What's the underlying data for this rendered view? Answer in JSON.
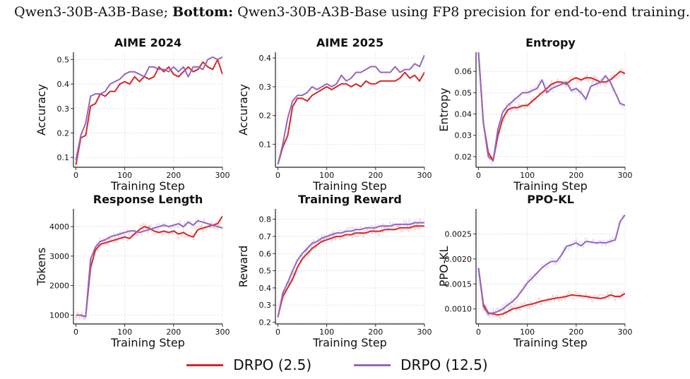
{
  "caption": {
    "line_prefix": "Qwen3-30B-A3B-Base;",
    "bold_word": "Bottom:",
    "line_rest": "Qwen3-30B-A3B-Base using FP8 precision for end-to-end training."
  },
  "legend": [
    {
      "name": "DRPO (2.5)",
      "color": "#d62728"
    },
    {
      "name": "DRPO (12.5)",
      "color": "#9467bd"
    }
  ],
  "chart_data": [
    {
      "type": "line",
      "title": "AIME 2024",
      "xlabel": "Training Step",
      "ylabel": "Accuracy",
      "xlim": [
        -5,
        300
      ],
      "ylim": [
        0.06,
        0.53
      ],
      "xticks": [
        "0",
        "100",
        "200",
        "300"
      ],
      "yticks": [
        "0.1",
        "0.2",
        "0.3",
        "0.4",
        "0.5"
      ],
      "grid": true,
      "raw_traces": false,
      "x": [
        0,
        10,
        20,
        30,
        40,
        50,
        60,
        70,
        80,
        90,
        100,
        110,
        120,
        130,
        140,
        150,
        160,
        170,
        180,
        190,
        200,
        210,
        220,
        230,
        240,
        250,
        260,
        270,
        280,
        290,
        300
      ],
      "series": [
        {
          "name": "DRPO (2.5)",
          "color": "#d62728",
          "values": [
            0.07,
            0.18,
            0.19,
            0.31,
            0.32,
            0.36,
            0.35,
            0.37,
            0.37,
            0.4,
            0.41,
            0.4,
            0.43,
            0.41,
            0.43,
            0.42,
            0.43,
            0.47,
            0.45,
            0.47,
            0.44,
            0.43,
            0.45,
            0.47,
            0.45,
            0.46,
            0.49,
            0.47,
            0.46,
            0.5,
            0.44
          ]
        },
        {
          "name": "DRPO (12.5)",
          "color": "#9467bd",
          "values": [
            0.09,
            0.19,
            0.24,
            0.35,
            0.36,
            0.36,
            0.37,
            0.4,
            0.41,
            0.42,
            0.44,
            0.45,
            0.45,
            0.44,
            0.43,
            0.47,
            0.47,
            0.46,
            0.46,
            0.45,
            0.47,
            0.45,
            0.47,
            0.43,
            0.47,
            0.47,
            0.46,
            0.5,
            0.51,
            0.5,
            0.51
          ]
        }
      ]
    },
    {
      "type": "line",
      "title": "AIME 2025",
      "xlabel": "Training Step",
      "ylabel": "Accuracy",
      "xlim": [
        -5,
        300
      ],
      "ylim": [
        0.02,
        0.42
      ],
      "xticks": [
        "0",
        "100",
        "200",
        "300"
      ],
      "yticks": [
        "0.1",
        "0.2",
        "0.3",
        "0.4"
      ],
      "grid": true,
      "raw_traces": false,
      "x": [
        0,
        10,
        20,
        30,
        40,
        50,
        60,
        70,
        80,
        90,
        100,
        110,
        120,
        130,
        140,
        150,
        160,
        170,
        180,
        190,
        200,
        210,
        220,
        230,
        240,
        250,
        260,
        270,
        280,
        290,
        300
      ],
      "series": [
        {
          "name": "DRPO (2.5)",
          "color": "#d62728",
          "values": [
            0.03,
            0.09,
            0.13,
            0.23,
            0.26,
            0.26,
            0.25,
            0.27,
            0.28,
            0.29,
            0.3,
            0.29,
            0.3,
            0.31,
            0.31,
            0.3,
            0.31,
            0.3,
            0.32,
            0.31,
            0.31,
            0.32,
            0.32,
            0.32,
            0.32,
            0.33,
            0.35,
            0.33,
            0.34,
            0.32,
            0.35
          ]
        },
        {
          "name": "DRPO (12.5)",
          "color": "#9467bd",
          "values": [
            0.03,
            0.1,
            0.19,
            0.25,
            0.27,
            0.27,
            0.28,
            0.3,
            0.29,
            0.3,
            0.31,
            0.3,
            0.31,
            0.34,
            0.32,
            0.33,
            0.35,
            0.35,
            0.36,
            0.37,
            0.37,
            0.35,
            0.35,
            0.35,
            0.37,
            0.35,
            0.36,
            0.36,
            0.38,
            0.37,
            0.41
          ]
        }
      ]
    },
    {
      "type": "line",
      "title": "Entropy",
      "xlabel": "Training Step",
      "ylabel": "Entropy",
      "xlim": [
        -5,
        300
      ],
      "ylim": [
        0.015,
        0.069
      ],
      "xticks": [
        "0",
        "100",
        "200",
        "300"
      ],
      "yticks": [
        "0.02",
        "0.03",
        "0.04",
        "0.05",
        "0.06"
      ],
      "grid": true,
      "raw_traces": true,
      "x": [
        0,
        10,
        20,
        30,
        40,
        50,
        60,
        70,
        80,
        90,
        100,
        110,
        120,
        130,
        140,
        150,
        160,
        170,
        180,
        190,
        200,
        210,
        220,
        230,
        240,
        250,
        260,
        270,
        280,
        290,
        300
      ],
      "series": [
        {
          "name": "DRPO (2.5)",
          "color": "#d62728",
          "values": [
            0.069,
            0.036,
            0.022,
            0.018,
            0.03,
            0.038,
            0.042,
            0.043,
            0.043,
            0.044,
            0.044,
            0.046,
            0.048,
            0.05,
            0.052,
            0.054,
            0.055,
            0.055,
            0.054,
            0.056,
            0.057,
            0.056,
            0.057,
            0.057,
            0.056,
            0.055,
            0.055,
            0.056,
            0.058,
            0.06,
            0.059
          ]
        },
        {
          "name": "DRPO (12.5)",
          "color": "#9467bd",
          "values": [
            0.069,
            0.036,
            0.02,
            0.018,
            0.033,
            0.041,
            0.044,
            0.046,
            0.048,
            0.05,
            0.05,
            0.051,
            0.052,
            0.056,
            0.05,
            0.052,
            0.053,
            0.054,
            0.055,
            0.051,
            0.052,
            0.05,
            0.047,
            0.053,
            0.054,
            0.055,
            0.058,
            0.055,
            0.05,
            0.045,
            0.044
          ]
        }
      ]
    },
    {
      "type": "line",
      "title": "Response Length",
      "xlabel": "Training Step",
      "ylabel": "Tokens",
      "xlim": [
        -5,
        300
      ],
      "ylim": [
        700,
        4600
      ],
      "xticks": [
        "0",
        "100",
        "200",
        "300"
      ],
      "yticks": [
        "1000",
        "2000",
        "3000",
        "4000"
      ],
      "grid": true,
      "raw_traces": true,
      "x": [
        0,
        10,
        20,
        30,
        40,
        50,
        60,
        70,
        80,
        90,
        100,
        110,
        120,
        130,
        140,
        150,
        160,
        170,
        180,
        190,
        200,
        210,
        220,
        230,
        240,
        250,
        260,
        270,
        280,
        290,
        300
      ],
      "series": [
        {
          "name": "DRPO (2.5)",
          "color": "#d62728",
          "values": [
            1000,
            1000,
            950,
            2600,
            3200,
            3400,
            3450,
            3500,
            3550,
            3600,
            3650,
            3600,
            3750,
            3900,
            4000,
            3950,
            3850,
            3800,
            3850,
            3800,
            3850,
            3750,
            3800,
            3700,
            3650,
            3900,
            3950,
            4000,
            4050,
            4100,
            4350
          ]
        },
        {
          "name": "DRPO (12.5)",
          "color": "#9467bd",
          "values": [
            1000,
            1000,
            950,
            2900,
            3300,
            3500,
            3550,
            3650,
            3700,
            3750,
            3800,
            3850,
            3850,
            3800,
            3850,
            3900,
            3950,
            4000,
            4050,
            4000,
            4050,
            4100,
            4000,
            4150,
            4050,
            4200,
            4150,
            4100,
            4050,
            4000,
            3950
          ]
        }
      ]
    },
    {
      "type": "line",
      "title": "Training Reward",
      "xlabel": "Training Step",
      "ylabel": "Reward",
      "xlim": [
        -5,
        300
      ],
      "ylim": [
        0.19,
        0.86
      ],
      "xticks": [
        "0",
        "100",
        "200",
        "300"
      ],
      "yticks": [
        "0.2",
        "0.3",
        "0.4",
        "0.5",
        "0.6",
        "0.7",
        "0.8"
      ],
      "grid": true,
      "raw_traces": true,
      "x": [
        0,
        10,
        20,
        30,
        40,
        50,
        60,
        70,
        80,
        90,
        100,
        110,
        120,
        130,
        140,
        150,
        160,
        170,
        180,
        190,
        200,
        210,
        220,
        230,
        240,
        250,
        260,
        270,
        280,
        290,
        300
      ],
      "series": [
        {
          "name": "DRPO (2.5)",
          "color": "#d62728",
          "values": [
            0.23,
            0.35,
            0.4,
            0.45,
            0.52,
            0.57,
            0.6,
            0.63,
            0.65,
            0.67,
            0.68,
            0.69,
            0.7,
            0.7,
            0.71,
            0.71,
            0.72,
            0.72,
            0.72,
            0.73,
            0.73,
            0.73,
            0.74,
            0.74,
            0.74,
            0.75,
            0.75,
            0.75,
            0.76,
            0.76,
            0.76
          ]
        },
        {
          "name": "DRPO (12.5)",
          "color": "#9467bd",
          "values": [
            0.23,
            0.37,
            0.43,
            0.5,
            0.56,
            0.6,
            0.63,
            0.66,
            0.67,
            0.69,
            0.7,
            0.71,
            0.72,
            0.72,
            0.73,
            0.73,
            0.74,
            0.74,
            0.75,
            0.75,
            0.75,
            0.76,
            0.76,
            0.76,
            0.77,
            0.77,
            0.77,
            0.77,
            0.78,
            0.78,
            0.78
          ]
        }
      ]
    },
    {
      "type": "line",
      "title": "PPO-KL",
      "xlabel": "Training Step",
      "ylabel": "PPO-KL",
      "xlim": [
        -5,
        300
      ],
      "ylim": [
        0.0007,
        0.003
      ],
      "xticks": [
        "0",
        "100",
        "200",
        "300"
      ],
      "yticks": [
        "0.0010",
        "0.0015",
        "0.0020",
        "0.0025"
      ],
      "grid": true,
      "raw_traces": true,
      "x": [
        0,
        10,
        20,
        30,
        40,
        50,
        60,
        70,
        80,
        90,
        100,
        110,
        120,
        130,
        140,
        150,
        160,
        170,
        180,
        190,
        200,
        210,
        220,
        230,
        240,
        250,
        260,
        270,
        280,
        290,
        300
      ],
      "series": [
        {
          "name": "DRPO (2.5)",
          "color": "#d62728",
          "values": [
            0.00182,
            0.0011,
            0.00092,
            0.0009,
            0.00088,
            0.0009,
            0.00095,
            0.001,
            0.00102,
            0.00105,
            0.00108,
            0.0011,
            0.00113,
            0.00116,
            0.00118,
            0.0012,
            0.00122,
            0.00123,
            0.00125,
            0.00128,
            0.00127,
            0.00126,
            0.00125,
            0.00123,
            0.00122,
            0.00121,
            0.00123,
            0.00128,
            0.00125,
            0.00125,
            0.00131
          ]
        },
        {
          "name": "DRPO (12.5)",
          "color": "#9467bd",
          "values": [
            0.00182,
            0.00105,
            0.0009,
            0.00092,
            0.00095,
            0.001,
            0.00108,
            0.00115,
            0.00125,
            0.00138,
            0.00152,
            0.00162,
            0.00172,
            0.00182,
            0.0019,
            0.00195,
            0.00195,
            0.00208,
            0.00225,
            0.00228,
            0.00232,
            0.00226,
            0.00235,
            0.00234,
            0.00232,
            0.00233,
            0.00232,
            0.00235,
            0.00238,
            0.00275,
            0.00288
          ]
        }
      ]
    }
  ]
}
